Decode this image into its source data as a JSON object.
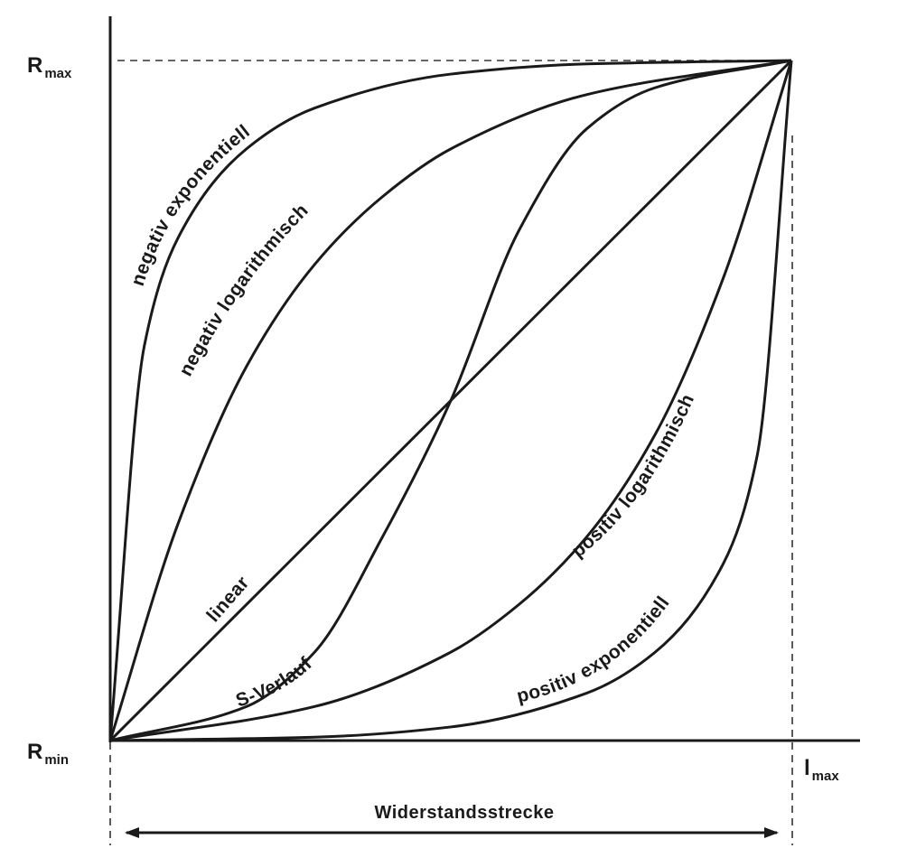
{
  "chart_data": {
    "type": "line",
    "title": "",
    "xlabel": "",
    "ylabel": "",
    "grid": false,
    "legend": "none",
    "xlim": [
      0,
      1
    ],
    "ylim": [
      0,
      1
    ],
    "axis_labels": {
      "y_max": {
        "main": "R",
        "sub": "max"
      },
      "y_min": {
        "main": "R",
        "sub": "min"
      },
      "x_max": {
        "main": "l",
        "sub": "max"
      }
    },
    "range_label": "Widerstandsstrecke",
    "series": [
      {
        "name": "negativ exponentiell",
        "shape": "negative-exponential",
        "x": [
          0,
          0.05,
          0.1,
          0.2,
          0.3,
          0.5,
          0.7,
          1
        ],
        "y": [
          0,
          0.58,
          0.74,
          0.87,
          0.93,
          0.98,
          0.995,
          1
        ]
      },
      {
        "name": "negativ logarithmisch",
        "shape": "negative-logarithmic",
        "x": [
          0,
          0.1,
          0.2,
          0.3,
          0.4,
          0.5,
          0.7,
          1
        ],
        "y": [
          0,
          0.32,
          0.55,
          0.7,
          0.8,
          0.87,
          0.95,
          1
        ]
      },
      {
        "name": "linear",
        "shape": "linear",
        "x": [
          0,
          0.25,
          0.5,
          0.75,
          1
        ],
        "y": [
          0,
          0.25,
          0.5,
          0.75,
          1
        ]
      },
      {
        "name": "S-Verlauf",
        "shape": "s-curve",
        "x": [
          0,
          0.2,
          0.3,
          0.4,
          0.5,
          0.6,
          0.7,
          0.8,
          1
        ],
        "y": [
          0,
          0.05,
          0.13,
          0.3,
          0.5,
          0.75,
          0.9,
          0.96,
          1
        ]
      },
      {
        "name": "positiv logarithmisch",
        "shape": "positive-logarithmic",
        "x": [
          0,
          0.3,
          0.5,
          0.6,
          0.7,
          0.8,
          0.9,
          1
        ],
        "y": [
          0,
          0.05,
          0.13,
          0.2,
          0.3,
          0.45,
          0.68,
          1
        ]
      },
      {
        "name": "positiv exponentiell",
        "shape": "positive-exponential",
        "x": [
          0,
          0.3,
          0.5,
          0.7,
          0.8,
          0.9,
          0.95,
          1
        ],
        "y": [
          0,
          0.005,
          0.02,
          0.07,
          0.13,
          0.26,
          0.42,
          1
        ]
      }
    ]
  }
}
